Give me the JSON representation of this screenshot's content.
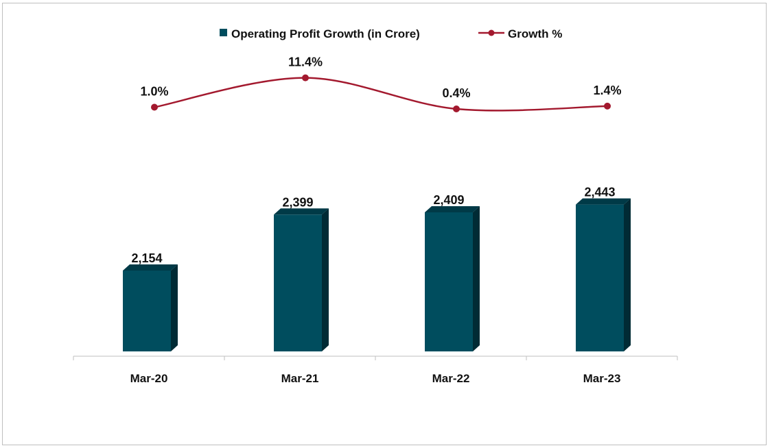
{
  "chart_data": {
    "type": "bar",
    "categories": [
      "Mar-20",
      "Mar-21",
      "Mar-22",
      "Mar-23"
    ],
    "series": [
      {
        "name": "Operating Profit Growth (in Crore)",
        "type": "bar",
        "values": [
          2154,
          2399,
          2409,
          2443
        ],
        "labels": [
          "2,154",
          "2,399",
          "2,409",
          "2,443"
        ],
        "color": "#004d5e"
      },
      {
        "name": "Growth %",
        "type": "line",
        "values": [
          1.0,
          11.4,
          0.4,
          1.4
        ],
        "labels": [
          "1.0%",
          "11.4%",
          "0.4%",
          "1.4%"
        ],
        "color": "#a3192e"
      }
    ],
    "legend_position": "top-center",
    "grid": false
  }
}
